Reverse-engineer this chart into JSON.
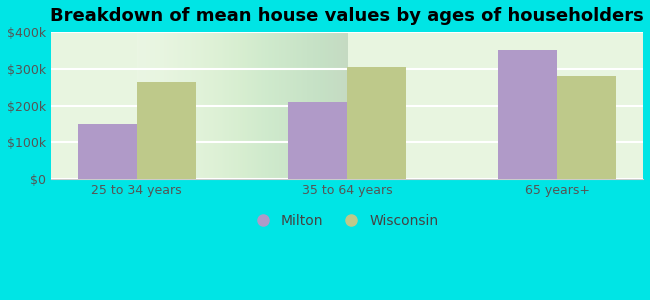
{
  "title": "Breakdown of mean house values by ages of householders",
  "categories": [
    "25 to 34 years",
    "35 to 64 years",
    "65 years+"
  ],
  "milton_values": [
    150000,
    210000,
    350000
  ],
  "wisconsin_values": [
    265000,
    305000,
    280000
  ],
  "milton_color": "#b09ac8",
  "wisconsin_color": "#bec98a",
  "background_outer": "#00e5e5",
  "background_inner_tl": "#e8f5e9",
  "background_inner_br": "#f5fff5",
  "ylim": [
    0,
    400000
  ],
  "yticks": [
    0,
    100000,
    200000,
    300000,
    400000
  ],
  "ytick_labels": [
    "$0",
    "$100k",
    "$200k",
    "$300k",
    "$400k"
  ],
  "legend_labels": [
    "Milton",
    "Wisconsin"
  ],
  "bar_width": 0.28,
  "title_fontsize": 13,
  "tick_fontsize": 9,
  "legend_fontsize": 10
}
